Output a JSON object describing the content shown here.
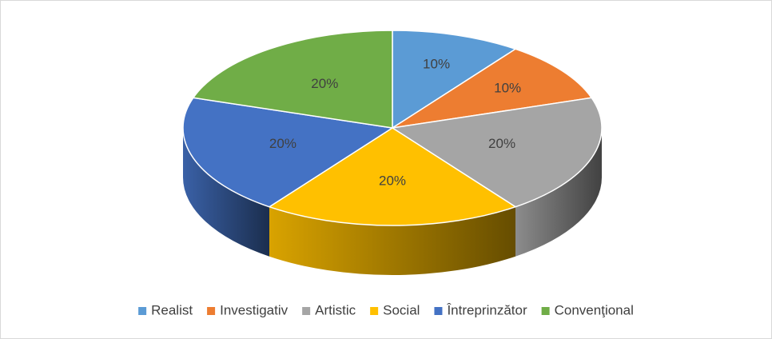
{
  "chart_data": {
    "type": "pie",
    "categories": [
      "Realist",
      "Investigativ",
      "Artistic",
      "Social",
      "Întreprinzător",
      "Convenţional"
    ],
    "values": [
      10,
      10,
      20,
      20,
      20,
      20
    ],
    "value_labels": [
      "10%",
      "10%",
      "20%",
      "20%",
      "20%",
      "20%"
    ],
    "colors": [
      "#5b9bd5",
      "#ed7d31",
      "#a5a5a5",
      "#ffc000",
      "#4472c4",
      "#70ad47"
    ],
    "legend": "bottom"
  }
}
